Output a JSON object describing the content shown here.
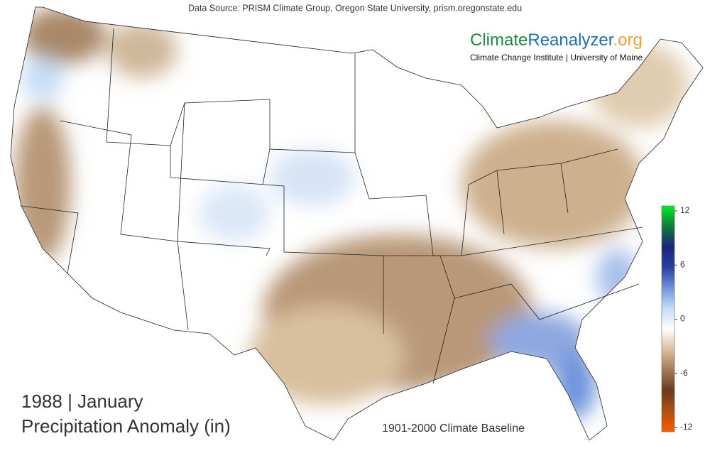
{
  "header": {
    "source": "Data Source: PRISM Climate Group, Oregon State University, prism.oregonstate.edu"
  },
  "logo": {
    "parts": [
      "Climate",
      "Reanalyzer",
      ".org"
    ],
    "colors": [
      "#1a8c3c",
      "#1b6fb8",
      "#f0a030"
    ],
    "subtitle": "Climate Change Institute | University of Maine"
  },
  "title": {
    "line1": "1988 | January",
    "line2": "Precipitation Anomaly (in)",
    "baseline": "1901-2000 Climate Baseline"
  },
  "colorbar": {
    "range": [
      -12,
      12
    ],
    "ticks": [
      12,
      6,
      0,
      -6,
      -12
    ],
    "colors": [
      "#ff5a00",
      "#b0500f",
      "#6b3a1f",
      "#a47a55",
      "#d8bf9e",
      "#ffffff",
      "#c5dcf5",
      "#6f94dc",
      "#2a3fa0",
      "#1a237e",
      "#127a3a",
      "#00ee22"
    ]
  }
}
